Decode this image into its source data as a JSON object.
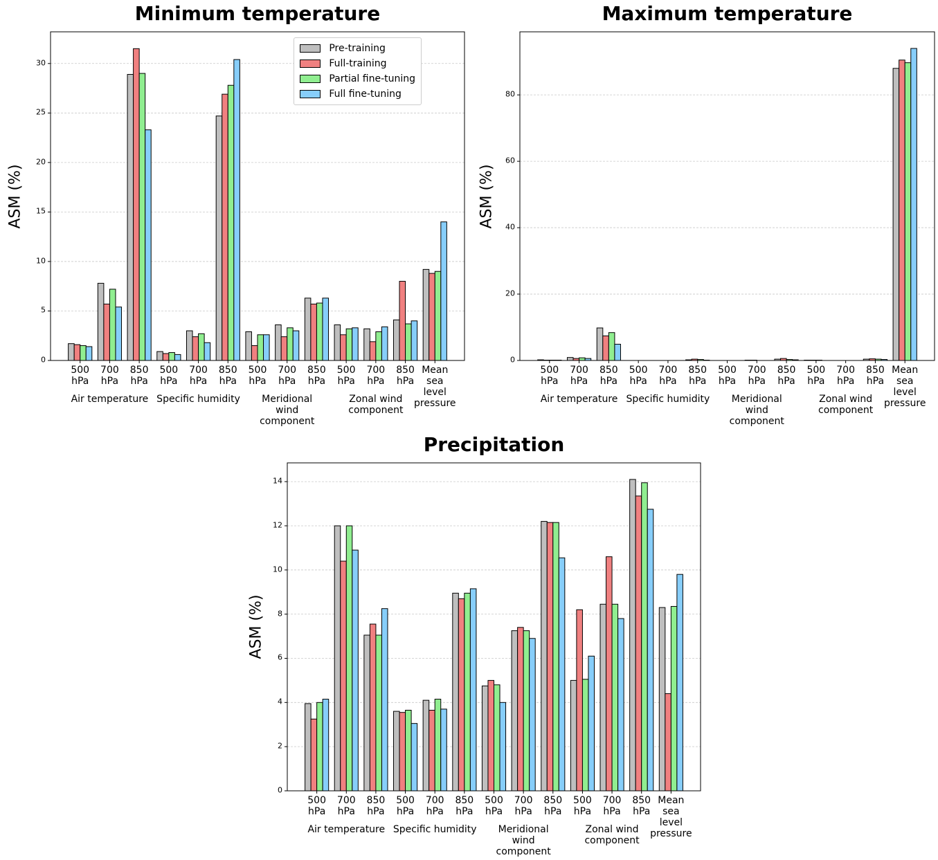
{
  "chart_data": [
    {
      "type": "bar",
      "title": "Minimum temperature",
      "ylabel": "ASM (%)",
      "categories": [
        "500\nhPa",
        "700\nhPa",
        "850\nhPa",
        "500\nhPa",
        "700\nhPa",
        "850\nhPa",
        "500\nhPa",
        "700\nhPa",
        "850\nhPa",
        "500\nhPa",
        "700\nhPa",
        "850\nhPa",
        "Mean\nsea\nlevel\npressure"
      ],
      "category_groups": [
        "Air temperature",
        "Specific humidity",
        "Meridional\nwind\ncomponent",
        "Zonal wind\ncomponent"
      ],
      "series": [
        {
          "name": "Pre-training",
          "color": "#bfbfbf",
          "values": [
            1.7,
            7.8,
            28.9,
            0.9,
            3.0,
            24.7,
            2.9,
            3.6,
            6.3,
            3.6,
            3.2,
            4.1,
            9.2
          ]
        },
        {
          "name": "Full-training",
          "color": "#f08080",
          "values": [
            1.6,
            5.7,
            31.5,
            0.7,
            2.4,
            26.9,
            1.5,
            2.4,
            5.7,
            2.6,
            1.9,
            8.0,
            8.8
          ]
        },
        {
          "name": "Partial fine-tuning",
          "color": "#90ee90",
          "values": [
            1.5,
            7.2,
            29.0,
            0.8,
            2.7,
            27.8,
            2.6,
            3.3,
            5.8,
            3.2,
            2.9,
            3.7,
            9.0
          ]
        },
        {
          "name": "Full fine-tuning",
          "color": "#87cefa",
          "values": [
            1.4,
            5.4,
            23.3,
            0.6,
            1.8,
            30.4,
            2.6,
            3.0,
            6.3,
            3.3,
            3.4,
            4.0,
            14.0
          ]
        }
      ],
      "ylim": [
        0,
        33.2
      ],
      "yticks": [
        0,
        5,
        10,
        15,
        20,
        25,
        30
      ],
      "grid": true,
      "legend": "upper right"
    },
    {
      "type": "bar",
      "title": "Maximum temperature",
      "ylabel": "ASM (%)",
      "categories": [
        "500\nhPa",
        "700\nhPa",
        "850\nhPa",
        "500\nhPa",
        "700\nhPa",
        "850\nhPa",
        "500\nhPa",
        "700\nhPa",
        "850\nhPa",
        "500\nhPa",
        "700\nhPa",
        "850\nhPa",
        "Mean\nsea\nlevel\npressure"
      ],
      "category_groups": [
        "Air temperature",
        "Specific humidity",
        "Meridional\nwind\ncomponent",
        "Zonal wind\ncomponent"
      ],
      "series": [
        {
          "name": "Pre-training",
          "color": "#bfbfbf",
          "values": [
            0.2,
            0.9,
            9.8,
            0,
            0,
            0.2,
            0,
            0.1,
            0.4,
            0.1,
            0,
            0.4,
            88.0
          ]
        },
        {
          "name": "Full-training",
          "color": "#f08080",
          "values": [
            0.1,
            0.6,
            7.4,
            0,
            0,
            0.4,
            0,
            0.1,
            0.6,
            0.1,
            0,
            0.5,
            90.5
          ]
        },
        {
          "name": "Partial fine-tuning",
          "color": "#90ee90",
          "values": [
            0.1,
            0.8,
            8.4,
            0,
            0,
            0.3,
            0,
            0,
            0.3,
            0.1,
            0,
            0.4,
            89.7
          ]
        },
        {
          "name": "Full fine-tuning",
          "color": "#87cefa",
          "values": [
            0.1,
            0.6,
            4.9,
            0,
            0,
            0.1,
            0,
            0,
            0.2,
            0,
            0,
            0.3,
            94.0
          ]
        }
      ],
      "ylim": [
        0,
        99
      ],
      "yticks": [
        0,
        20,
        40,
        60,
        80
      ],
      "grid": true
    },
    {
      "type": "bar",
      "title": "Precipitation",
      "ylabel": "ASM (%)",
      "categories": [
        "500\nhPa",
        "700\nhPa",
        "850\nhPa",
        "500\nhPa",
        "700\nhPa",
        "850\nhPa",
        "500\nhPa",
        "700\nhPa",
        "850\nhPa",
        "500\nhPa",
        "700\nhPa",
        "850\nhPa",
        "Mean\nsea\nlevel\npressure"
      ],
      "category_groups": [
        "Air temperature",
        "Specific humidity",
        "Meridional\nwind\ncomponent",
        "Zonal wind\ncomponent"
      ],
      "series": [
        {
          "name": "Pre-training",
          "color": "#bfbfbf",
          "values": [
            3.95,
            12.0,
            7.05,
            3.6,
            4.1,
            8.95,
            4.75,
            7.25,
            12.2,
            5.0,
            8.45,
            14.1,
            8.3
          ]
        },
        {
          "name": "Full-training",
          "color": "#f08080",
          "values": [
            3.25,
            10.4,
            7.55,
            3.55,
            3.65,
            8.7,
            5.0,
            7.4,
            12.15,
            8.2,
            10.6,
            13.35,
            4.4
          ]
        },
        {
          "name": "Partial fine-tuning",
          "color": "#90ee90",
          "values": [
            4.0,
            12.0,
            7.05,
            3.65,
            4.15,
            8.95,
            4.8,
            7.25,
            12.15,
            5.05,
            8.45,
            13.95,
            8.35
          ]
        },
        {
          "name": "Full fine-tuning",
          "color": "#87cefa",
          "values": [
            4.15,
            10.9,
            8.25,
            3.05,
            3.7,
            9.15,
            4.0,
            6.9,
            10.55,
            6.1,
            7.8,
            12.75,
            9.8
          ]
        }
      ],
      "ylim": [
        0,
        14.85
      ],
      "yticks": [
        0,
        2,
        4,
        6,
        8,
        10,
        12,
        14
      ],
      "grid": true
    }
  ]
}
